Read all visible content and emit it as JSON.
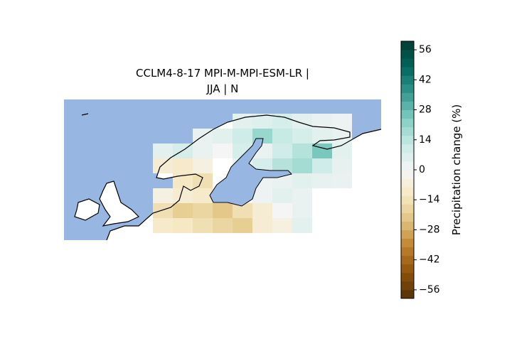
{
  "chart_data": {
    "type": "grid_map",
    "title_lines": [
      "CCLM4-8-17 MPI-M-MPI-ESM-LR |",
      "JJA | N"
    ],
    "colorbar_label": "Precipitation change (%)",
    "clim": [
      -60,
      60
    ],
    "cticks": [
      {
        "value": -56,
        "label": "−56"
      },
      {
        "value": -42,
        "label": "−42"
      },
      {
        "value": -28,
        "label": "−28"
      },
      {
        "value": -14,
        "label": "−14"
      },
      0,
      14,
      28,
      42,
      56
    ],
    "colormap": [
      "#543005",
      "#8c510a",
      "#bf812d",
      "#dfc27d",
      "#f6e8c3",
      "#f5f5f5",
      "#c7eae5",
      "#80cdc1",
      "#35978f",
      "#01665e",
      "#003c30"
    ],
    "ocean_color": "#97b6e1",
    "values": [
      [
        null,
        null,
        null,
        null,
        5,
        6,
        8,
        5,
        3,
        2
      ],
      [
        null,
        null,
        3,
        5,
        10,
        20,
        12,
        8,
        5,
        3
      ],
      [
        5,
        8,
        3,
        0,
        8,
        3,
        10,
        15,
        25,
        5
      ],
      [
        -8,
        -10,
        -5,
        null,
        3,
        8,
        15,
        18,
        10,
        4
      ],
      [
        null,
        -12,
        -15,
        null,
        null,
        2,
        3,
        5,
        4,
        3
      ],
      [
        -5,
        -8,
        -10,
        -5,
        0,
        2,
        5,
        3,
        null,
        null
      ],
      [
        -15,
        -20,
        -18,
        -22,
        -15,
        -8,
        0,
        3,
        null,
        null
      ],
      [
        -10,
        -12,
        -15,
        -18,
        -20,
        -8,
        -5,
        5,
        null,
        null
      ]
    ]
  }
}
